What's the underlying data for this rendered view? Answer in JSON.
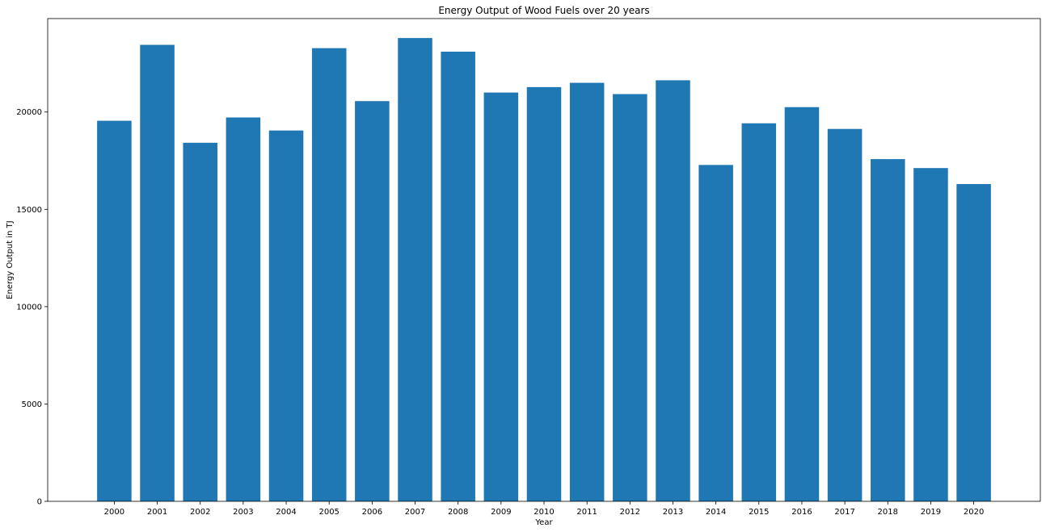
{
  "chart_data": {
    "type": "bar",
    "title": "Energy Output of Wood Fuels over 20 years",
    "xlabel": "Year",
    "ylabel": "Energy Output in TJ",
    "categories": [
      "2000",
      "2001",
      "2002",
      "2003",
      "2004",
      "2005",
      "2006",
      "2007",
      "2008",
      "2009",
      "2010",
      "2011",
      "2012",
      "2013",
      "2014",
      "2015",
      "2016",
      "2017",
      "2018",
      "2019",
      "2020"
    ],
    "values": [
      19550,
      23450,
      18420,
      19720,
      19050,
      23280,
      20560,
      23800,
      23100,
      21000,
      21280,
      21500,
      20920,
      21630,
      17280,
      19420,
      20250,
      19130,
      17580,
      17120,
      16300
    ],
    "ylim": [
      0,
      24800
    ],
    "yticks": [
      0,
      5000,
      10000,
      15000,
      20000
    ],
    "grid": false,
    "colors": {
      "bar": "#1f77b4",
      "axis": "#000000"
    }
  }
}
